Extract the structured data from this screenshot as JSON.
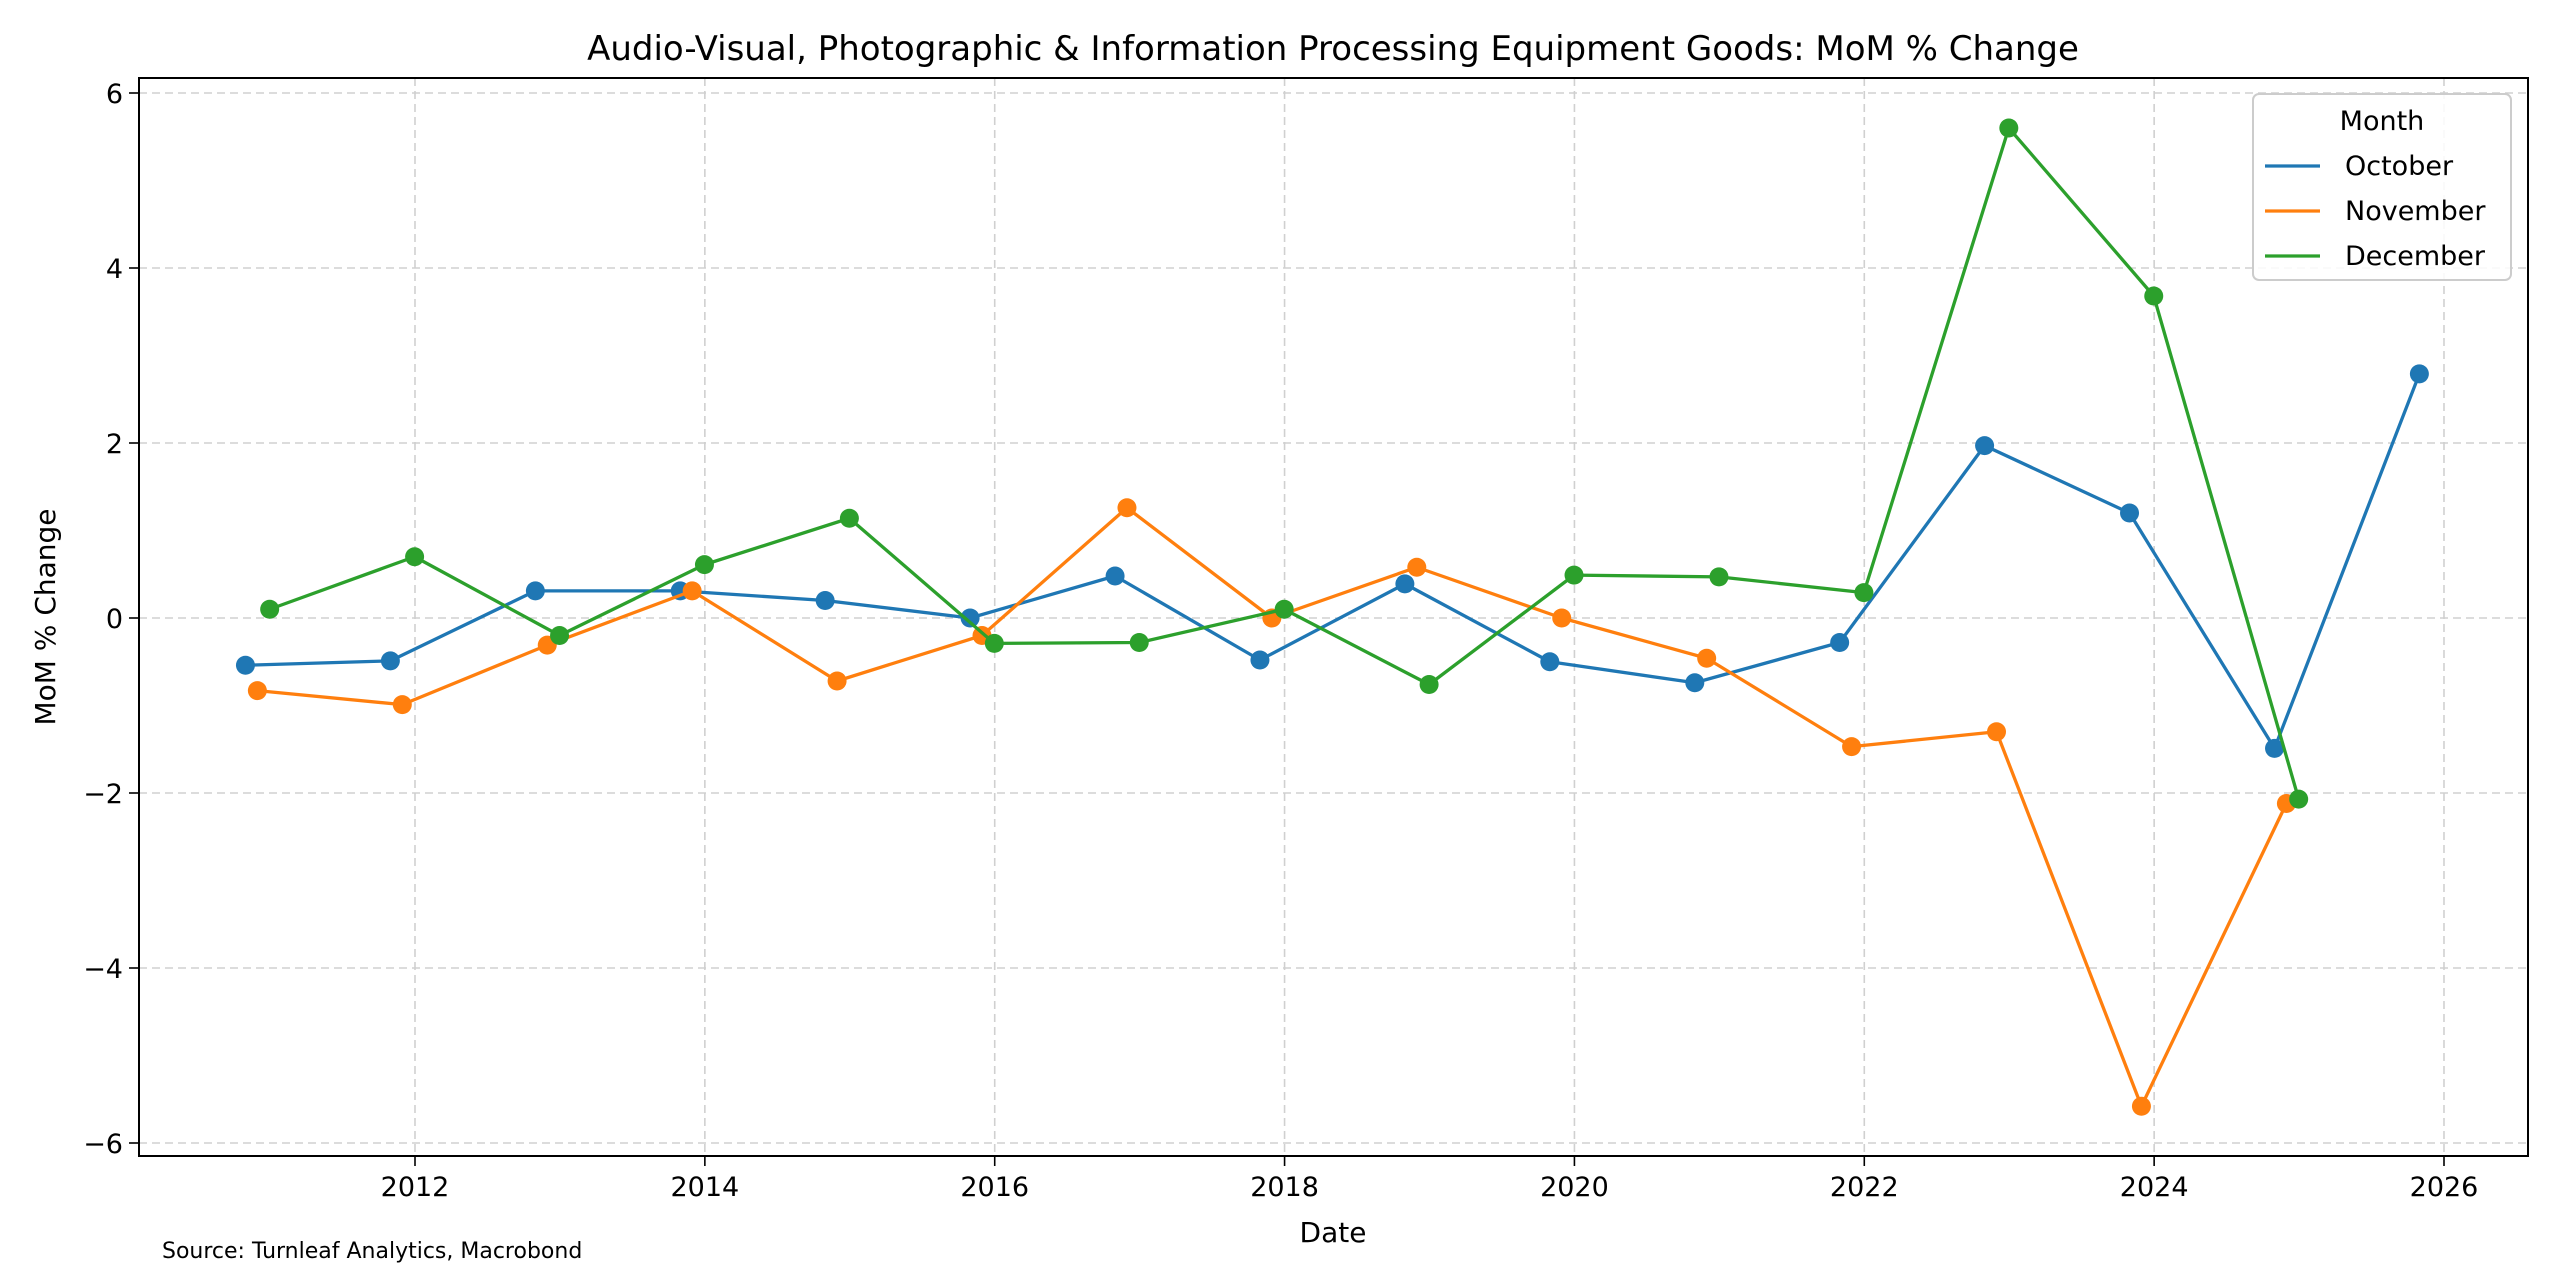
{
  "chart_data": {
    "type": "line",
    "title": "Audio-Visual, Photographic & Information Processing Equipment Goods: MoM % Change",
    "xlabel": "Date",
    "ylabel": "MoM % Change",
    "source": "Source: Turnleaf Analytics, Macrobond",
    "xlim": [
      2010.55,
      2026.5
    ],
    "ylim": [
      -6.15,
      6.15
    ],
    "xticks": [
      2012,
      2014,
      2016,
      2018,
      2020,
      2022,
      2024,
      2026
    ],
    "yticks": [
      -6,
      -4,
      -2,
      0,
      2,
      4,
      6
    ],
    "ytick_labels": [
      "−6",
      "−4",
      "−2",
      "0",
      "2",
      "4",
      "6"
    ],
    "grid": true,
    "legend": {
      "title": "Month",
      "placement": "top-right"
    },
    "series": [
      {
        "name": "October",
        "color": "#1f77b4",
        "x": [
          "2010-10-31",
          "2011-10-31",
          "2012-10-31",
          "2013-10-31",
          "2014-10-31",
          "2015-10-31",
          "2016-10-31",
          "2017-10-31",
          "2018-10-31",
          "2019-10-31",
          "2020-10-31",
          "2021-10-31",
          "2022-10-31",
          "2023-10-31",
          "2024-10-31",
          "2025-10-31"
        ],
        "values": [
          -0.54,
          -0.49,
          0.31,
          0.31,
          0.2,
          0.0,
          0.48,
          -0.48,
          0.39,
          -0.5,
          -0.74,
          -0.28,
          1.97,
          1.2,
          -1.49,
          2.79
        ]
      },
      {
        "name": "November",
        "color": "#ff7f0e",
        "x": [
          "2010-11-30",
          "2011-11-30",
          "2012-11-30",
          "2013-11-30",
          "2014-11-30",
          "2015-11-30",
          "2016-11-30",
          "2017-11-30",
          "2018-11-30",
          "2019-11-30",
          "2020-11-30",
          "2021-11-30",
          "2022-11-30",
          "2023-11-30",
          "2024-11-30"
        ],
        "values": [
          -0.83,
          -0.99,
          -0.31,
          0.31,
          -0.72,
          -0.2,
          1.26,
          0.0,
          0.58,
          0.0,
          -0.46,
          -1.47,
          -1.3,
          -5.58,
          -2.12
        ]
      },
      {
        "name": "December",
        "color": "#2ca02c",
        "x": [
          "2010-12-31",
          "2011-12-31",
          "2012-12-31",
          "2013-12-31",
          "2014-12-31",
          "2015-12-31",
          "2016-12-31",
          "2017-12-31",
          "2018-12-31",
          "2019-12-31",
          "2020-12-31",
          "2021-12-31",
          "2022-12-31",
          "2023-12-31",
          "2024-12-31"
        ],
        "values": [
          0.1,
          0.7,
          -0.2,
          0.61,
          1.14,
          -0.29,
          -0.28,
          0.1,
          -0.76,
          0.49,
          0.47,
          0.29,
          5.6,
          3.68,
          -2.07
        ]
      }
    ]
  }
}
